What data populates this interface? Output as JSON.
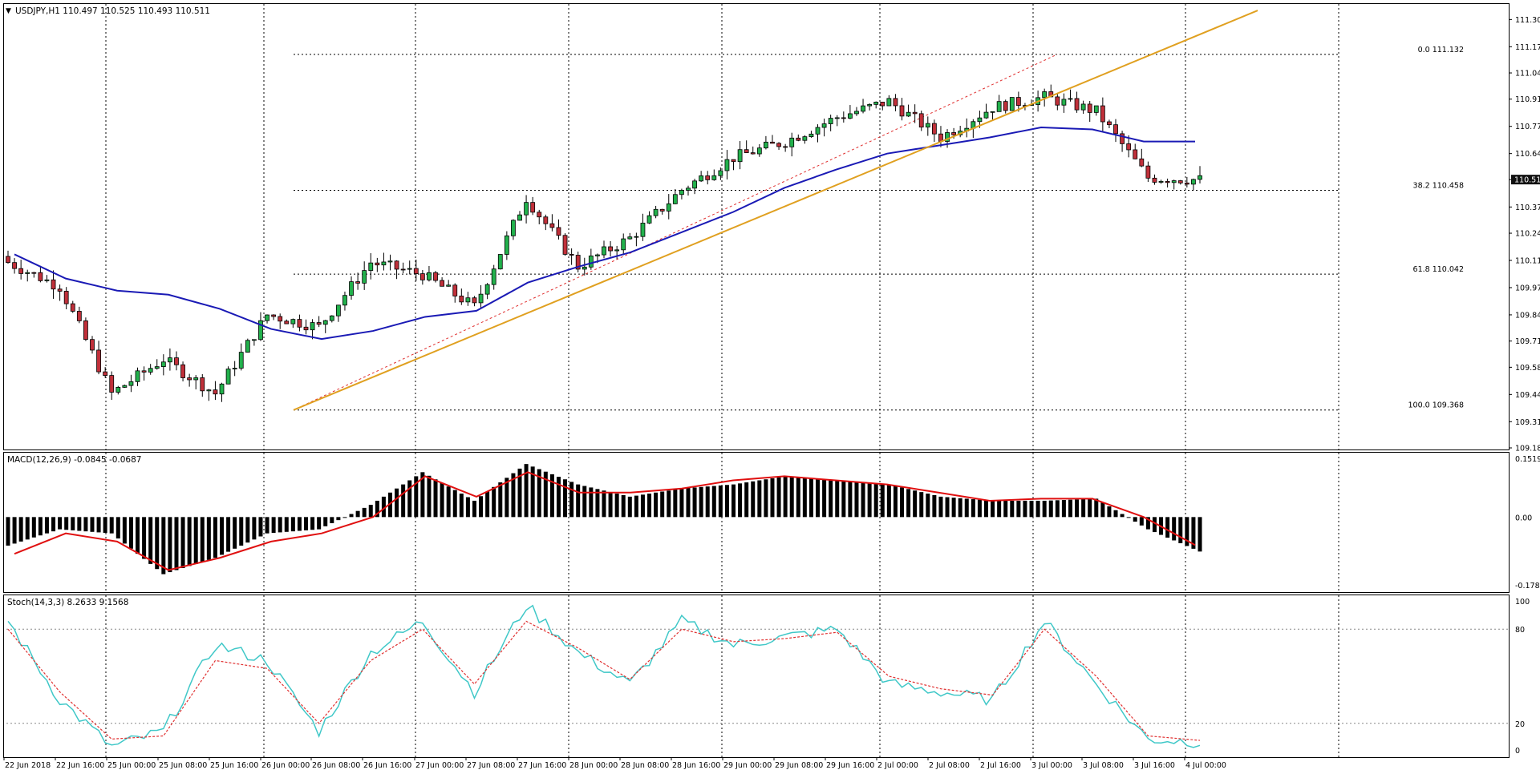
{
  "header": {
    "symbol_line": "USDJPY,H1  110.497 110.525 110.493 110.511"
  },
  "colors": {
    "bull_candle": "#22b14c",
    "bear_candle": "#c0303a",
    "moving_average": "#1a1ab5",
    "trendline": "#e0a020",
    "fib_dashed": "#e03030",
    "macd_signal": "#e01010",
    "stoch_main": "#40c8c8",
    "stoch_signal": "#e03030",
    "current_price_box": "#111111"
  },
  "x_axis": {
    "labels": [
      "22 Jun 2018",
      "22 Jun 16:00",
      "25 Jun 00:00",
      "25 Jun 08:00",
      "25 Jun 16:00",
      "26 Jun 00:00",
      "26 Jun 08:00",
      "26 Jun 16:00",
      "27 Jun 00:00",
      "27 Jun 08:00",
      "27 Jun 16:00",
      "28 Jun 00:00",
      "28 Jun 08:00",
      "28 Jun 16:00",
      "29 Jun 00:00",
      "29 Jun 08:00",
      "29 Jun 16:00",
      "2 Jul 00:00",
      "2 Jul 08:00",
      "2 Jul 16:00",
      "3 Jul 00:00",
      "3 Jul 08:00",
      "3 Jul 16:00",
      "4 Jul 00:00"
    ]
  },
  "price_axis": {
    "labels": [
      "111.305",
      "111.170",
      "111.040",
      "110.910",
      "110.775",
      "110.640",
      "110.511",
      "110.375",
      "110.245",
      "110.110",
      "109.975",
      "109.840",
      "109.710",
      "109.580",
      "109.445",
      "109.310",
      "109.180"
    ],
    "current_price": "110.511"
  },
  "fib_levels": [
    {
      "label": "0.0 111.132",
      "price": 111.132
    },
    {
      "label": "38.2 110.458",
      "price": 110.458
    },
    {
      "label": "61.8 110.042",
      "price": 110.042
    },
    {
      "label": "100.0 109.368",
      "price": 109.368
    }
  ],
  "macd": {
    "header": "MACD(12,26,9) -0.0845 -0.0687",
    "axis_labels": [
      "0.1519",
      "0.00",
      "-0.1781"
    ]
  },
  "stochastic": {
    "header": "Stoch(14,3,3) 8.2633 9.1568",
    "axis_labels": [
      "100",
      "80",
      "20",
      "0"
    ]
  },
  "chart_data": [
    {
      "type": "candlestick",
      "title": "USDJPY,H1",
      "ylim": [
        109.18,
        111.37
      ],
      "x": [
        "22 Jun 2018",
        "22 Jun 16:00",
        "25 Jun 00:00",
        "25 Jun 08:00",
        "25 Jun 16:00",
        "26 Jun 00:00",
        "26 Jun 08:00",
        "26 Jun 16:00",
        "27 Jun 00:00",
        "27 Jun 08:00",
        "27 Jun 16:00",
        "28 Jun 00:00",
        "28 Jun 08:00",
        "28 Jun 16:00",
        "29 Jun 00:00",
        "29 Jun 08:00",
        "29 Jun 16:00",
        "2 Jul 00:00",
        "2 Jul 08:00",
        "2 Jul 16:00",
        "3 Jul 00:00",
        "3 Jul 08:00",
        "3 Jul 16:00",
        "4 Jul 00:00"
      ],
      "close_anchors": [
        110.1,
        109.98,
        109.45,
        109.62,
        109.45,
        109.84,
        109.78,
        110.1,
        110.04,
        109.88,
        110.42,
        110.08,
        110.22,
        110.46,
        110.62,
        110.7,
        110.82,
        110.9,
        110.72,
        110.87,
        110.92,
        110.85,
        110.52,
        110.51
      ],
      "moving_average": [
        110.14,
        110.02,
        109.96,
        109.94,
        109.87,
        109.77,
        109.72,
        109.76,
        109.83,
        109.86,
        110.0,
        110.08,
        110.15,
        110.25,
        110.35,
        110.47,
        110.56,
        110.64,
        110.68,
        110.72,
        110.77,
        110.76,
        110.7,
        110.7
      ],
      "grid": true
    },
    {
      "type": "bar",
      "title": "MACD(12,26,9)",
      "ylim": [
        -0.1781,
        0.1519
      ],
      "x": [
        "22 Jun 2018",
        "22 Jun 16:00",
        "25 Jun 00:00",
        "25 Jun 08:00",
        "25 Jun 16:00",
        "26 Jun 00:00",
        "26 Jun 08:00",
        "26 Jun 16:00",
        "27 Jun 00:00",
        "27 Jun 08:00",
        "27 Jun 16:00",
        "28 Jun 00:00",
        "28 Jun 08:00",
        "28 Jun 16:00",
        "29 Jun 00:00",
        "29 Jun 08:00",
        "29 Jun 16:00",
        "2 Jul 00:00",
        "2 Jul 08:00",
        "2 Jul 16:00",
        "3 Jul 00:00",
        "3 Jul 08:00",
        "3 Jul 16:00",
        "4 Jul 00:00"
      ],
      "histogram": [
        -0.07,
        -0.03,
        -0.04,
        -0.14,
        -0.1,
        -0.04,
        -0.03,
        0.03,
        0.11,
        0.04,
        0.13,
        0.08,
        0.05,
        0.07,
        0.08,
        0.1,
        0.09,
        0.08,
        0.05,
        0.04,
        0.04,
        0.045,
        -0.03,
        -0.0845
      ],
      "signal": [
        -0.09,
        -0.04,
        -0.06,
        -0.13,
        -0.1,
        -0.06,
        -0.04,
        0.0,
        0.1,
        0.05,
        0.11,
        0.06,
        0.06,
        0.07,
        0.09,
        0.1,
        0.09,
        0.08,
        0.06,
        0.04,
        0.045,
        0.045,
        0.0,
        -0.0687
      ]
    },
    {
      "type": "line",
      "title": "Stoch(14,3,3)",
      "ylim": [
        0,
        100
      ],
      "x": [
        "22 Jun 2018",
        "22 Jun 16:00",
        "25 Jun 00:00",
        "25 Jun 08:00",
        "25 Jun 16:00",
        "26 Jun 00:00",
        "26 Jun 08:00",
        "26 Jun 16:00",
        "27 Jun 00:00",
        "27 Jun 08:00",
        "27 Jun 16:00",
        "28 Jun 00:00",
        "28 Jun 08:00",
        "28 Jun 16:00",
        "29 Jun 00:00",
        "29 Jun 08:00",
        "29 Jun 16:00",
        "2 Jul 00:00",
        "2 Jul 08:00",
        "2 Jul 16:00",
        "3 Jul 00:00",
        "3 Jul 08:00",
        "3 Jul 16:00",
        "4 Jul 00:00"
      ],
      "series": [
        {
          "values": [
            85,
            35,
            5,
            15,
            70,
            60,
            15,
            65,
            85,
            40,
            95,
            65,
            45,
            85,
            70,
            75,
            80,
            45,
            40,
            35,
            85,
            45,
            10,
            8.2633
          ]
        },
        {
          "values": [
            80,
            40,
            10,
            12,
            60,
            55,
            20,
            60,
            80,
            45,
            85,
            68,
            48,
            80,
            72,
            74,
            78,
            50,
            42,
            38,
            80,
            50,
            12,
            9.1568
          ]
        }
      ],
      "levels": [
        80,
        20
      ]
    }
  ]
}
